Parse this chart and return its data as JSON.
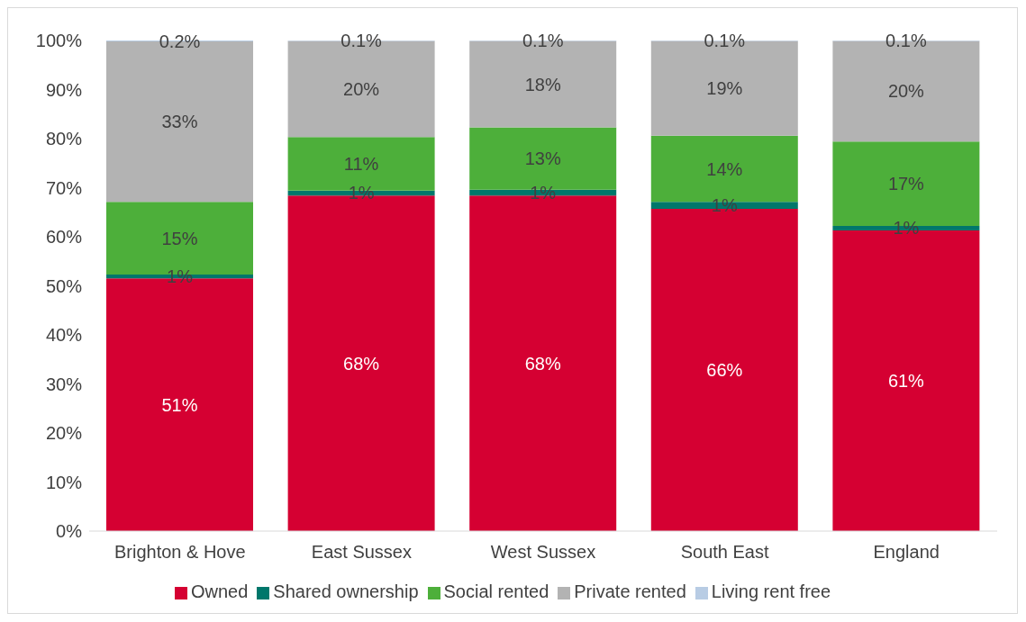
{
  "chart_data": {
    "type": "bar",
    "stacked": true,
    "categories": [
      "Brighton & Hove",
      "East Sussex",
      "West Sussex",
      "South East",
      "England"
    ],
    "ylim": [
      0,
      100
    ],
    "yticks": [
      {
        "value": 0,
        "label": "0%"
      },
      {
        "value": 10,
        "label": "10%"
      },
      {
        "value": 20,
        "label": "20%"
      },
      {
        "value": 30,
        "label": "30%"
      },
      {
        "value": 40,
        "label": "40%"
      },
      {
        "value": 50,
        "label": "50%"
      },
      {
        "value": 60,
        "label": "60%"
      },
      {
        "value": 70,
        "label": "70%"
      },
      {
        "value": 80,
        "label": "80%"
      },
      {
        "value": 90,
        "label": "90%"
      },
      {
        "value": 100,
        "label": "100%"
      }
    ],
    "legend": "bottom",
    "series": [
      {
        "name": "Owned",
        "color": "#d50032",
        "values": [
          51.5,
          68.4,
          68.4,
          65.7,
          61.3
        ],
        "value_labels": [
          "51%",
          "68%",
          "68%",
          "66%",
          "61%"
        ]
      },
      {
        "name": "Shared ownership",
        "color": "#00776b",
        "values": [
          0.8,
          1.0,
          1.2,
          1.4,
          0.9
        ],
        "value_labels": [
          "1%",
          "1%",
          "1%",
          "1%",
          "1%"
        ]
      },
      {
        "name": "Social rented",
        "color": "#4daf3a",
        "values": [
          14.8,
          10.9,
          12.7,
          13.5,
          17.2
        ],
        "value_labels": [
          "15%",
          "11%",
          "13%",
          "14%",
          "17%"
        ]
      },
      {
        "name": "Private rented",
        "color": "#b3b3b3",
        "values": [
          32.7,
          19.6,
          17.6,
          19.3,
          20.5
        ],
        "value_labels": [
          "33%",
          "20%",
          "18%",
          "19%",
          "20%"
        ]
      },
      {
        "name": "Living rent free",
        "color": "#b8cce4",
        "values": [
          0.2,
          0.1,
          0.1,
          0.1,
          0.1
        ],
        "value_labels": [
          "0.2%",
          "0.1%",
          "0.1%",
          "0.1%",
          "0.1%"
        ]
      }
    ]
  }
}
